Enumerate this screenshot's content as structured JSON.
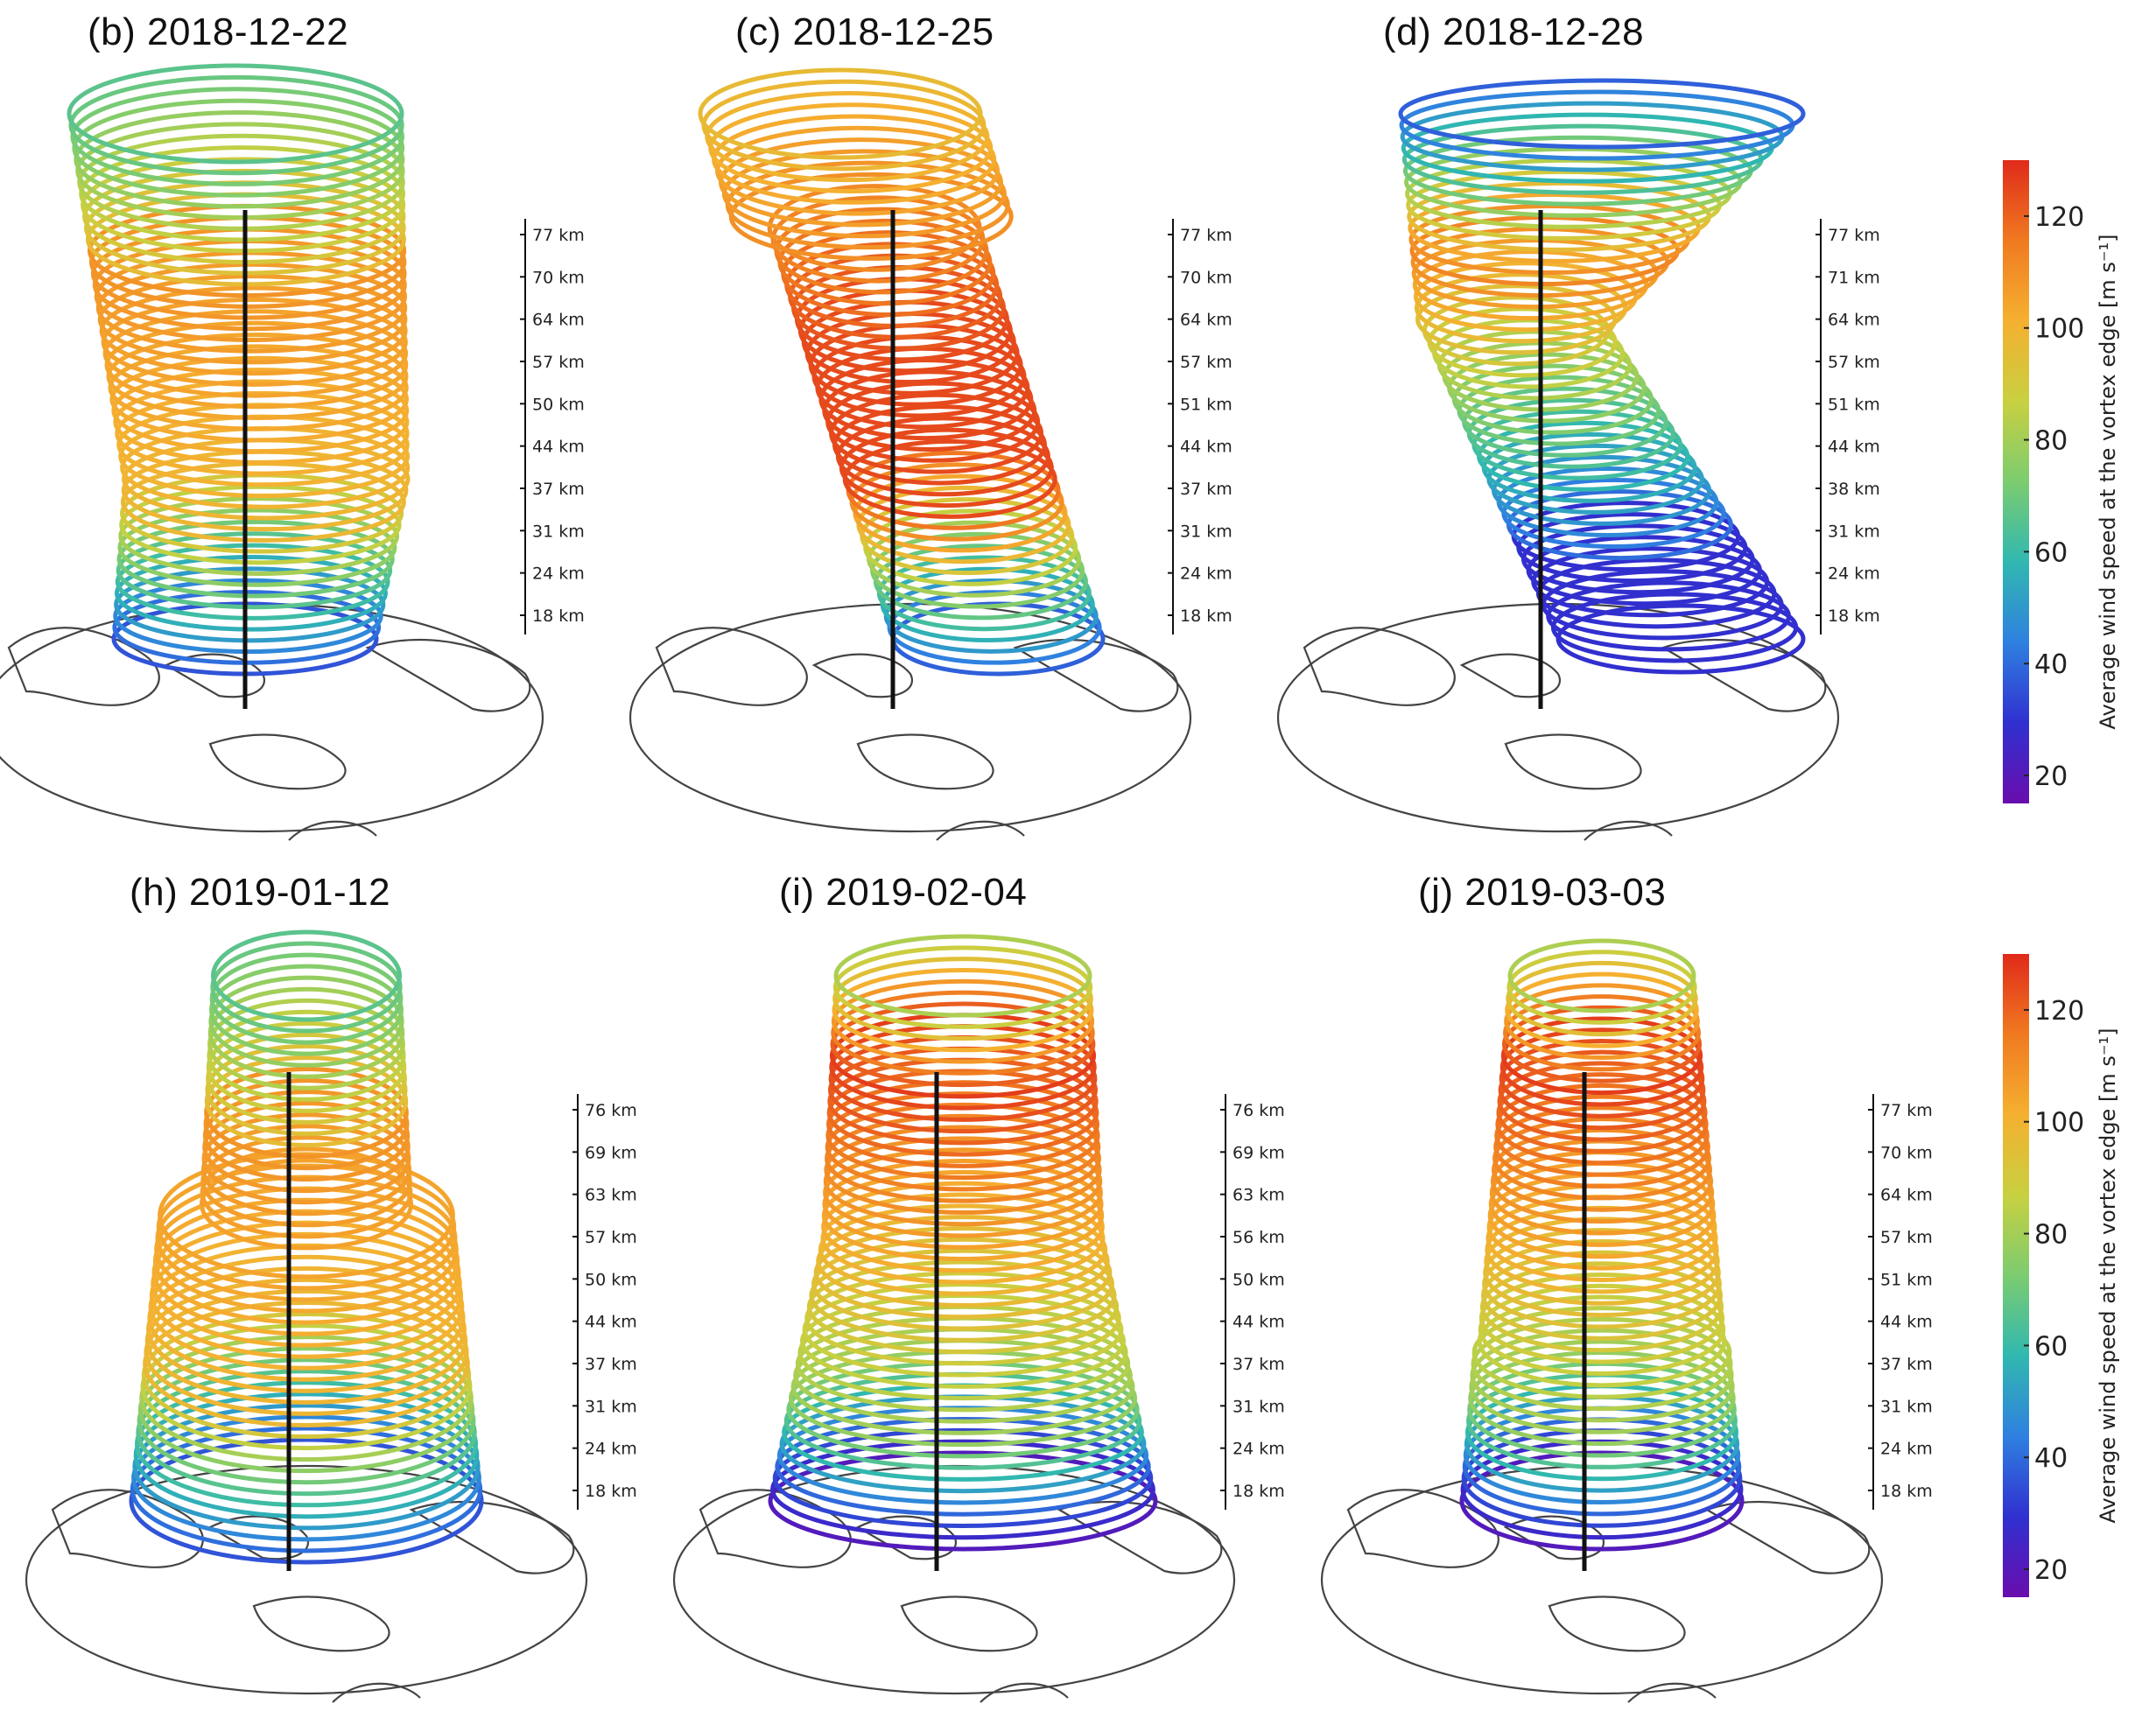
{
  "panels": [
    {
      "title": "(b) 2018-12-22",
      "shape": "tilted",
      "palette": "orange-green",
      "altitudes": [
        "77 km",
        "70 km",
        "64 km",
        "57 km",
        "50 km",
        "44 km",
        "37 km",
        "31 km",
        "24 km",
        "18 km"
      ]
    },
    {
      "title": "(c) 2018-12-25",
      "shape": "sheared",
      "palette": "red-yellow",
      "altitudes": [
        "77 km",
        "70 km",
        "64 km",
        "57 km",
        "51 km",
        "44 km",
        "37 km",
        "31 km",
        "24 km",
        "18 km"
      ]
    },
    {
      "title": "(d) 2018-12-28",
      "shape": "hook",
      "palette": "blue-edge",
      "altitudes": [
        "77 km",
        "71 km",
        "64 km",
        "57 km",
        "51 km",
        "44 km",
        "38 km",
        "31 km",
        "24 km",
        "18 km"
      ]
    },
    {
      "title": "(h) 2019-01-12",
      "shape": "split",
      "palette": "orange-green",
      "altitudes": [
        "76 km",
        "69 km",
        "63 km",
        "57 km",
        "50 km",
        "44 km",
        "37 km",
        "31 km",
        "24 km",
        "18 km"
      ]
    },
    {
      "title": "(i) 2019-02-04",
      "shape": "column",
      "palette": "red-core",
      "altitudes": [
        "76 km",
        "69 km",
        "63 km",
        "56 km",
        "50 km",
        "44 km",
        "37 km",
        "31 km",
        "24 km",
        "18 km"
      ]
    },
    {
      "title": "(j) 2019-03-03",
      "shape": "ringtop",
      "palette": "red-core",
      "altitudes": [
        "77 km",
        "70 km",
        "64 km",
        "57 km",
        "51 km",
        "44 km",
        "37 km",
        "31 km",
        "24 km",
        "18 km"
      ]
    }
  ],
  "colorbars": [
    {
      "label": "Average wind speed at the vortex edge [m s⁻¹]",
      "ticks": [
        "20",
        "40",
        "60",
        "80",
        "100",
        "120"
      ],
      "range": [
        15,
        130
      ]
    },
    {
      "label": "Average wind speed at the vortex edge [m s⁻¹]",
      "ticks": [
        "20",
        "40",
        "60",
        "80",
        "100",
        "120"
      ],
      "range": [
        15,
        130
      ]
    }
  ],
  "colors": {
    "scale": [
      "#6a0dad",
      "#3030d0",
      "#2f80e0",
      "#30b8b0",
      "#7ccc70",
      "#c8d040",
      "#f5b030",
      "#f07a20",
      "#e02a1a"
    ],
    "map_outline": "#444444",
    "axis": "#111111"
  }
}
